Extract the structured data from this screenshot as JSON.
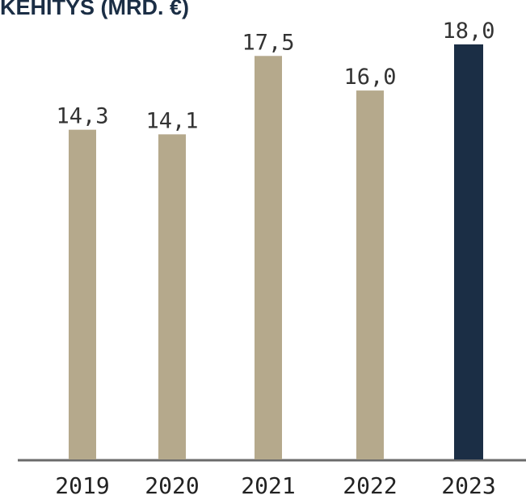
{
  "chart_data": {
    "type": "bar",
    "title": "KEHITYS (MRD. €)",
    "categories": [
      "2019",
      "2020",
      "2021",
      "2022",
      "2023"
    ],
    "values": [
      14.3,
      14.1,
      17.5,
      16.0,
      18.0
    ],
    "value_labels": [
      "14,3",
      "14,1",
      "17,5",
      "16,0",
      "18,0"
    ],
    "colors": [
      "#b5a98c",
      "#b5a98c",
      "#b5a98c",
      "#b5a98c",
      "#1b2e45"
    ]
  }
}
